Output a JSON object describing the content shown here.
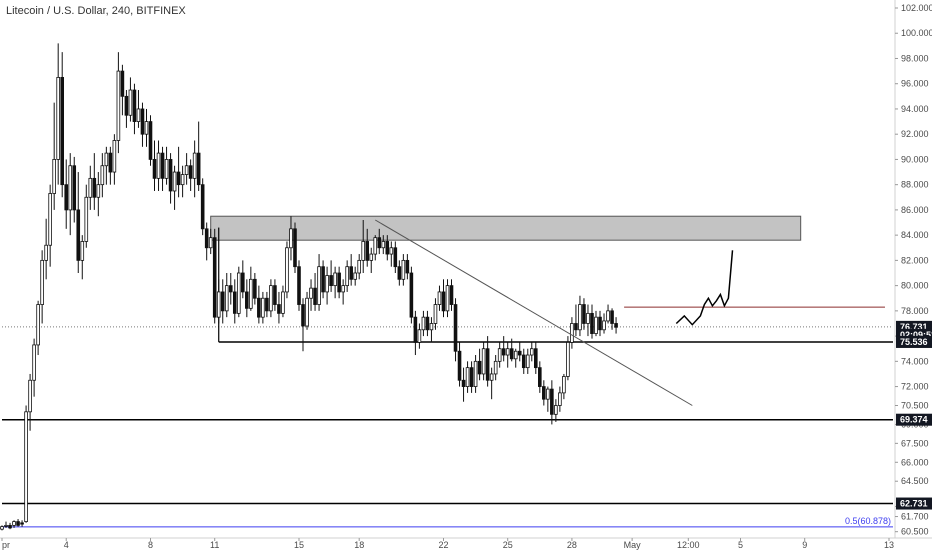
{
  "header": {
    "title": "Litecoin / U.S. Dollar, 240, BITFINEX"
  },
  "chart_data": {
    "type": "candlestick",
    "ylim": [
      60.0,
      102.0
    ],
    "x_domain": [
      0,
      222
    ],
    "y_ticks": [
      "60.500",
      "61.700",
      "62.500",
      "64.500",
      "66.000",
      "67.500",
      "69.000",
      "70.500",
      "72.000",
      "74.000",
      "76.000",
      "78.000",
      "80.000",
      "82.000",
      "84.000",
      "86.000",
      "88.000",
      "90.000",
      "92.000",
      "94.000",
      "96.000",
      "98.000",
      "100.000",
      "102.000"
    ],
    "x_ticks": [
      {
        "label": "pr",
        "x": 0
      },
      {
        "label": "4",
        "x": 16
      },
      {
        "label": "8",
        "x": 37
      },
      {
        "label": "11",
        "x": 53
      },
      {
        "label": "15",
        "x": 74
      },
      {
        "label": "18",
        "x": 89
      },
      {
        "label": "22",
        "x": 110
      },
      {
        "label": "25",
        "x": 126
      },
      {
        "label": "28",
        "x": 142
      },
      {
        "label": "May",
        "x": 157
      },
      {
        "label": "12:00",
        "x": 171
      },
      {
        "label": "5",
        "x": 184
      },
      {
        "label": "9",
        "x": 200
      },
      {
        "label": "13",
        "x": 221
      }
    ],
    "price_tags": [
      {
        "label": "76.731",
        "value": 76.731,
        "color": "#131722"
      },
      {
        "label": "02:09:52",
        "value": 76.1,
        "color": "#131722"
      },
      {
        "label": "75.536",
        "value": 75.536,
        "color": "#131722"
      },
      {
        "label": "69.374",
        "value": 69.374,
        "color": "#131722"
      },
      {
        "label": "62.731",
        "value": 62.731,
        "color": "#131722"
      }
    ],
    "fib_label": "0.5(60.878)",
    "fib_value": 60.878,
    "horizontal_lines": [
      {
        "value": 75.536,
        "x0": 54,
        "x1": 222,
        "color": "#000000"
      },
      {
        "value": 69.374,
        "x0": 0,
        "x1": 222,
        "color": "#000000"
      },
      {
        "value": 62.731,
        "x0": 0,
        "x1": 222,
        "color": "#000000"
      },
      {
        "value": 60.878,
        "x0": 0,
        "x1": 222,
        "color": "#3d3df0"
      },
      {
        "value": 78.3,
        "x0": 155,
        "x1": 220,
        "color": "#8b2c2c"
      },
      {
        "value": 76.731,
        "x0": 0,
        "x1": 222,
        "color": "#777777",
        "dotted": true
      }
    ],
    "zone": {
      "x0": 52,
      "x1": 199,
      "y_low": 83.6,
      "y_high": 85.5,
      "color": "#9e9e9e"
    },
    "trendline": {
      "x0": 93,
      "y0": 85.2,
      "x1": 172,
      "y1": 70.5
    },
    "support_bracket": {
      "x0": 54,
      "x_vertical": 54,
      "y_top": 84.6,
      "y_bottom": 75.536
    },
    "projection": [
      [
        168,
        77.0
      ],
      [
        170,
        77.6
      ],
      [
        172,
        76.9
      ],
      [
        174,
        77.6
      ],
      [
        175,
        78.5
      ],
      [
        176,
        79.0
      ],
      [
        177,
        78.4
      ],
      [
        178,
        78.8
      ],
      [
        179,
        79.3
      ],
      [
        180,
        78.4
      ],
      [
        181,
        79.0
      ],
      [
        182,
        82.8
      ]
    ],
    "candles": [
      [
        60.7,
        61.0,
        60.6,
        60.9
      ],
      [
        61.0,
        61.3,
        60.8,
        61.0
      ],
      [
        61.0,
        61.2,
        60.7,
        60.8
      ],
      [
        61.0,
        61.4,
        60.8,
        61.3
      ],
      [
        61.3,
        61.5,
        60.9,
        61.0
      ],
      [
        61.2,
        61.4,
        60.9,
        61.1
      ],
      [
        61.3,
        70.5,
        61.2,
        70.0
      ],
      [
        70.0,
        73.0,
        68.5,
        72.5
      ],
      [
        72.5,
        75.8,
        71.2,
        75.3
      ],
      [
        75.3,
        78.8,
        74.5,
        78.5
      ],
      [
        78.5,
        82.8,
        77.0,
        82.0
      ],
      [
        82.0,
        85.3,
        80.5,
        83.2
      ],
      [
        83.2,
        88.0,
        81.5,
        87.3
      ],
      [
        87.3,
        94.5,
        86.0,
        90.0
      ],
      [
        90.0,
        99.2,
        88.0,
        96.5
      ],
      [
        96.5,
        98.5,
        87.0,
        88.0
      ],
      [
        88.0,
        90.0,
        84.5,
        86.0
      ],
      [
        86.0,
        90.5,
        84.0,
        89.5
      ],
      [
        89.5,
        90.2,
        85.0,
        86.0
      ],
      [
        86.0,
        89.0,
        81.0,
        82.0
      ],
      [
        82.0,
        84.0,
        80.5,
        83.5
      ],
      [
        83.5,
        88.0,
        83.0,
        87.0
      ],
      [
        87.0,
        89.5,
        86.0,
        88.5
      ],
      [
        88.5,
        90.5,
        86.0,
        87.0
      ],
      [
        87.0,
        89.0,
        85.5,
        88.0
      ],
      [
        88.0,
        90.5,
        87.0,
        89.5
      ],
      [
        89.5,
        91.0,
        88.0,
        90.5
      ],
      [
        90.5,
        91.0,
        88.0,
        89.0
      ],
      [
        89.0,
        92.0,
        88.0,
        91.5
      ],
      [
        91.5,
        98.5,
        90.5,
        97.0
      ],
      [
        97.0,
        97.5,
        93.5,
        95.0
      ],
      [
        95.0,
        95.5,
        92.5,
        93.5
      ],
      [
        93.5,
        96.5,
        93.0,
        95.5
      ],
      [
        95.5,
        96.0,
        92.0,
        93.0
      ],
      [
        93.0,
        95.5,
        92.5,
        94.0
      ],
      [
        94.0,
        94.5,
        91.0,
        92.0
      ],
      [
        92.0,
        94.0,
        91.0,
        93.0
      ],
      [
        93.0,
        93.5,
        89.5,
        90.0
      ],
      [
        90.0,
        91.5,
        87.5,
        88.5
      ],
      [
        88.5,
        91.5,
        87.5,
        90.5
      ],
      [
        90.5,
        91.0,
        87.5,
        88.5
      ],
      [
        88.5,
        91.0,
        88.0,
        90.0
      ],
      [
        90.0,
        90.5,
        86.5,
        87.5
      ],
      [
        87.5,
        89.5,
        86.0,
        89.0
      ],
      [
        89.0,
        91.0,
        87.0,
        88.0
      ],
      [
        88.0,
        89.5,
        87.0,
        88.8
      ],
      [
        88.8,
        90.5,
        88.0,
        89.5
      ],
      [
        89.5,
        90.0,
        87.5,
        88.5
      ],
      [
        88.5,
        91.5,
        87.0,
        90.5
      ],
      [
        90.5,
        93.0,
        87.5,
        88.0
      ],
      [
        88.0,
        88.5,
        84.0,
        84.5
      ],
      [
        84.5,
        85.0,
        82.0,
        83.0
      ],
      [
        83.0,
        84.5,
        82.5,
        83.8
      ],
      [
        83.8,
        84.5,
        77.0,
        77.5
      ],
      [
        77.5,
        80.5,
        77.0,
        79.5
      ],
      [
        79.5,
        80.5,
        77.0,
        78.0
      ],
      [
        78.0,
        81.0,
        77.5,
        80.0
      ],
      [
        80.0,
        81.0,
        78.5,
        79.5
      ],
      [
        79.5,
        80.5,
        77.0,
        77.8
      ],
      [
        77.8,
        81.5,
        77.5,
        81.0
      ],
      [
        81.0,
        82.0,
        79.0,
        79.5
      ],
      [
        79.5,
        80.5,
        77.5,
        78.2
      ],
      [
        78.2,
        81.5,
        78.0,
        80.5
      ],
      [
        80.5,
        81.0,
        78.5,
        79.0
      ],
      [
        79.0,
        80.0,
        77.0,
        77.5
      ],
      [
        77.5,
        79.5,
        77.0,
        79.0
      ],
      [
        79.0,
        79.5,
        77.5,
        78.0
      ],
      [
        78.0,
        80.5,
        77.5,
        80.0
      ],
      [
        80.0,
        80.5,
        78.0,
        78.5
      ],
      [
        78.5,
        79.5,
        77.0,
        77.8
      ],
      [
        77.8,
        80.0,
        77.5,
        79.5
      ],
      [
        79.5,
        83.5,
        79.0,
        83.0
      ],
      [
        83.0,
        85.5,
        82.0,
        84.5
      ],
      [
        84.5,
        85.0,
        81.0,
        81.5
      ],
      [
        81.5,
        82.0,
        78.0,
        78.5
      ],
      [
        78.5,
        79.0,
        74.8,
        76.8
      ],
      [
        76.8,
        79.5,
        76.5,
        79.0
      ],
      [
        79.0,
        80.5,
        78.0,
        79.8
      ],
      [
        79.8,
        81.0,
        78.0,
        78.5
      ],
      [
        78.5,
        82.5,
        78.0,
        81.5
      ],
      [
        81.5,
        82.0,
        79.0,
        79.5
      ],
      [
        79.5,
        81.5,
        78.5,
        80.8
      ],
      [
        80.8,
        82.0,
        79.5,
        80.0
      ],
      [
        80.0,
        81.5,
        79.0,
        81.0
      ],
      [
        81.0,
        81.5,
        79.0,
        79.5
      ],
      [
        79.5,
        80.5,
        78.5,
        80.0
      ],
      [
        80.0,
        82.0,
        79.5,
        81.5
      ],
      [
        81.5,
        82.5,
        80.0,
        80.5
      ],
      [
        80.5,
        81.5,
        80.0,
        81.0
      ],
      [
        81.0,
        82.5,
        80.5,
        82.0
      ],
      [
        82.0,
        85.2,
        81.0,
        83.5
      ],
      [
        83.5,
        84.5,
        81.5,
        82.0
      ],
      [
        82.0,
        83.0,
        81.0,
        82.5
      ],
      [
        82.5,
        84.0,
        82.0,
        83.8
      ],
      [
        83.8,
        84.5,
        82.5,
        83.0
      ],
      [
        83.0,
        84.0,
        82.5,
        83.5
      ],
      [
        83.5,
        84.0,
        82.0,
        82.5
      ],
      [
        82.5,
        83.5,
        81.5,
        83.0
      ],
      [
        83.0,
        83.5,
        81.0,
        81.5
      ],
      [
        81.5,
        82.0,
        80.0,
        80.5
      ],
      [
        80.5,
        82.5,
        80.0,
        82.0
      ],
      [
        82.0,
        82.5,
        80.5,
        81.0
      ],
      [
        81.0,
        81.5,
        77.0,
        77.5
      ],
      [
        77.5,
        78.0,
        74.5,
        75.5
      ],
      [
        75.5,
        77.0,
        75.0,
        76.5
      ],
      [
        76.5,
        78.0,
        76.0,
        77.5
      ],
      [
        77.5,
        78.0,
        76.0,
        76.5
      ],
      [
        76.5,
        77.5,
        75.5,
        77.0
      ],
      [
        77.0,
        79.0,
        76.5,
        78.5
      ],
      [
        78.5,
        80.0,
        78.0,
        79.5
      ],
      [
        79.5,
        80.5,
        77.5,
        78.0
      ],
      [
        78.0,
        80.5,
        77.5,
        80.0
      ],
      [
        80.0,
        80.5,
        78.0,
        78.5
      ],
      [
        78.5,
        79.0,
        74.0,
        74.8
      ],
      [
        74.8,
        75.5,
        72.0,
        72.5
      ],
      [
        72.5,
        73.5,
        70.8,
        72.0
      ],
      [
        72.0,
        74.0,
        71.5,
        73.5
      ],
      [
        73.5,
        74.0,
        71.5,
        72.0
      ],
      [
        72.0,
        74.5,
        71.5,
        74.0
      ],
      [
        74.0,
        75.0,
        72.5,
        73.0
      ],
      [
        73.0,
        75.5,
        72.5,
        75.0
      ],
      [
        75.0,
        76.0,
        72.0,
        72.5
      ],
      [
        72.5,
        73.5,
        71.0,
        73.0
      ],
      [
        73.0,
        74.5,
        72.5,
        74.0
      ],
      [
        74.0,
        75.5,
        73.5,
        75.0
      ],
      [
        75.0,
        76.0,
        74.0,
        74.5
      ],
      [
        74.5,
        75.5,
        73.5,
        75.0
      ],
      [
        75.0,
        75.8,
        74.0,
        74.2
      ],
      [
        74.2,
        75.0,
        73.5,
        74.8
      ],
      [
        74.8,
        75.5,
        74.0,
        74.5
      ],
      [
        74.5,
        75.0,
        73.0,
        73.5
      ],
      [
        73.5,
        75.0,
        73.0,
        74.5
      ],
      [
        74.5,
        75.5,
        74.0,
        75.0
      ],
      [
        75.0,
        75.5,
        73.0,
        73.5
      ],
      [
        73.5,
        74.0,
        71.5,
        72.0
      ],
      [
        72.0,
        72.5,
        70.5,
        71.0
      ],
      [
        71.0,
        72.0,
        70.0,
        71.8
      ],
      [
        71.8,
        72.5,
        69.0,
        69.8
      ],
      [
        69.8,
        71.0,
        69.2,
        70.5
      ],
      [
        70.5,
        72.0,
        70.0,
        71.5
      ],
      [
        71.5,
        73.0,
        71.0,
        72.8
      ],
      [
        72.8,
        76.0,
        72.5,
        75.5
      ],
      [
        75.5,
        77.5,
        75.0,
        77.0
      ],
      [
        77.0,
        78.5,
        76.0,
        76.5
      ],
      [
        76.5,
        79.2,
        76.0,
        78.5
      ],
      [
        78.5,
        79.0,
        76.5,
        77.0
      ],
      [
        77.0,
        78.5,
        76.0,
        77.8
      ],
      [
        77.8,
        78.5,
        75.8,
        76.2
      ],
      [
        76.2,
        78.0,
        76.0,
        77.5
      ],
      [
        77.5,
        78.0,
        76.0,
        76.5
      ],
      [
        76.5,
        77.8,
        76.2,
        77.2
      ],
      [
        77.2,
        78.5,
        77.0,
        78.0
      ],
      [
        78.0,
        78.2,
        76.5,
        77.0
      ],
      [
        77.0,
        77.5,
        76.2,
        76.7
      ]
    ]
  }
}
